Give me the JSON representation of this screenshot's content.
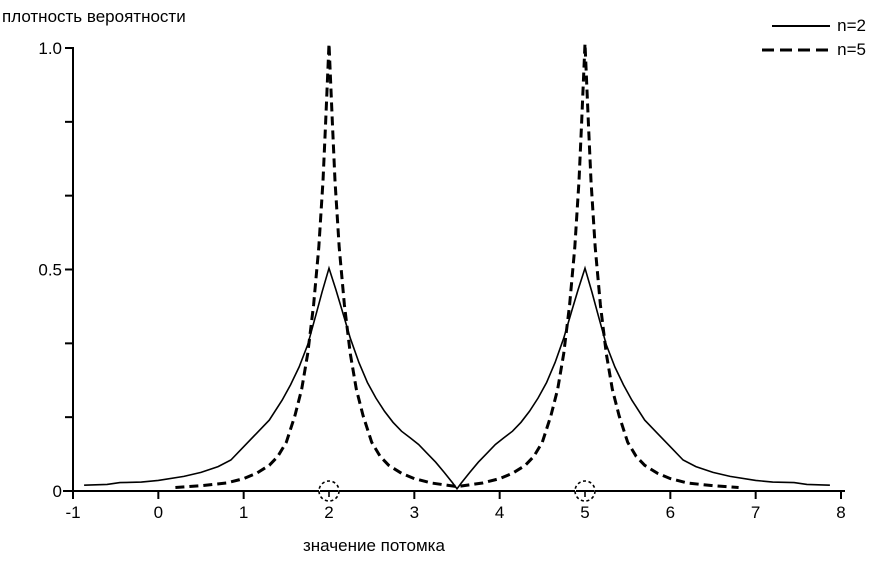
{
  "figure": {
    "background": "#ffffff",
    "foreground": "#000000"
  },
  "chart_data": {
    "type": "line",
    "title": "",
    "ylabel": "плотность вероятности",
    "xlabel": "значение потомка",
    "xlim": [
      -1,
      8
    ],
    "ylim": [
      0,
      1.0
    ],
    "grid": false,
    "legend_position": "top-right",
    "xticks": [
      {
        "v": -1,
        "label": "-1"
      },
      {
        "v": 0,
        "label": "0"
      },
      {
        "v": 1,
        "label": "1"
      },
      {
        "v": 2,
        "label": "2"
      },
      {
        "v": 3,
        "label": "3"
      },
      {
        "v": 4,
        "label": "4"
      },
      {
        "v": 5,
        "label": "5"
      },
      {
        "v": 6,
        "label": "6"
      },
      {
        "v": 7,
        "label": "7"
      },
      {
        "v": 8,
        "label": "8"
      }
    ],
    "yticks": [
      {
        "v": 0,
        "label": "0"
      },
      {
        "v": 0.1667,
        "label": ""
      },
      {
        "v": 0.3333,
        "label": ""
      },
      {
        "v": 0.5,
        "label": "0.5"
      },
      {
        "v": 0.6667,
        "label": ""
      },
      {
        "v": 0.8333,
        "label": ""
      },
      {
        "v": 1.0,
        "label": "1.0"
      }
    ],
    "axis_markers": [
      {
        "x": 2,
        "symbol": "т"
      },
      {
        "x": 5,
        "symbol": "т"
      }
    ],
    "series": [
      {
        "name": "n=2",
        "style": "solid",
        "color": "#000000",
        "peaks": [
          {
            "x": 2,
            "y": 0.5
          },
          {
            "x": 5,
            "y": 0.5
          }
        ],
        "points": [
          [
            -0.87,
            0.013
          ],
          [
            -0.6,
            0.015
          ],
          [
            -0.45,
            0.019
          ],
          [
            -0.2,
            0.02
          ],
          [
            0,
            0.024
          ],
          [
            0.3,
            0.033
          ],
          [
            0.5,
            0.042
          ],
          [
            0.7,
            0.055
          ],
          [
            0.85,
            0.07
          ],
          [
            1.0,
            0.1
          ],
          [
            1.15,
            0.13
          ],
          [
            1.3,
            0.16
          ],
          [
            1.45,
            0.205
          ],
          [
            1.55,
            0.24
          ],
          [
            1.65,
            0.28
          ],
          [
            1.75,
            0.33
          ],
          [
            1.85,
            0.4
          ],
          [
            1.92,
            0.45
          ],
          [
            2.0,
            0.503
          ],
          [
            2.08,
            0.455
          ],
          [
            2.15,
            0.41
          ],
          [
            2.25,
            0.345
          ],
          [
            2.35,
            0.29
          ],
          [
            2.45,
            0.245
          ],
          [
            2.55,
            0.21
          ],
          [
            2.65,
            0.18
          ],
          [
            2.75,
            0.155
          ],
          [
            2.85,
            0.135
          ],
          [
            2.95,
            0.12
          ],
          [
            3.05,
            0.105
          ],
          [
            3.15,
            0.085
          ],
          [
            3.25,
            0.065
          ],
          [
            3.35,
            0.042
          ],
          [
            3.45,
            0.018
          ],
          [
            3.5,
            0.005
          ],
          [
            3.55,
            0.018
          ],
          [
            3.65,
            0.042
          ],
          [
            3.75,
            0.065
          ],
          [
            3.85,
            0.085
          ],
          [
            3.95,
            0.105
          ],
          [
            4.05,
            0.12
          ],
          [
            4.15,
            0.135
          ],
          [
            4.25,
            0.155
          ],
          [
            4.35,
            0.18
          ],
          [
            4.45,
            0.21
          ],
          [
            4.55,
            0.245
          ],
          [
            4.65,
            0.29
          ],
          [
            4.75,
            0.345
          ],
          [
            4.85,
            0.41
          ],
          [
            4.92,
            0.455
          ],
          [
            5.0,
            0.503
          ],
          [
            5.08,
            0.45
          ],
          [
            5.15,
            0.4
          ],
          [
            5.25,
            0.33
          ],
          [
            5.35,
            0.28
          ],
          [
            5.45,
            0.24
          ],
          [
            5.55,
            0.205
          ],
          [
            5.7,
            0.16
          ],
          [
            5.85,
            0.13
          ],
          [
            6.0,
            0.1
          ],
          [
            6.15,
            0.07
          ],
          [
            6.3,
            0.055
          ],
          [
            6.5,
            0.042
          ],
          [
            6.7,
            0.033
          ],
          [
            7.0,
            0.024
          ],
          [
            7.2,
            0.02
          ],
          [
            7.45,
            0.019
          ],
          [
            7.6,
            0.015
          ],
          [
            7.87,
            0.013
          ]
        ]
      },
      {
        "name": "n=5",
        "style": "dashed",
        "color": "#000000",
        "peaks": [
          {
            "x": 2,
            "y": 1.0
          },
          {
            "x": 5,
            "y": 1.0
          }
        ],
        "points": [
          [
            0.2,
            0.008
          ],
          [
            0.5,
            0.012
          ],
          [
            0.8,
            0.018
          ],
          [
            1.0,
            0.028
          ],
          [
            1.15,
            0.04
          ],
          [
            1.3,
            0.058
          ],
          [
            1.4,
            0.078
          ],
          [
            1.5,
            0.11
          ],
          [
            1.6,
            0.17
          ],
          [
            1.68,
            0.23
          ],
          [
            1.75,
            0.31
          ],
          [
            1.82,
            0.42
          ],
          [
            1.88,
            0.55
          ],
          [
            1.93,
            0.7
          ],
          [
            1.96,
            0.83
          ],
          [
            2.0,
            1.01
          ],
          [
            2.04,
            0.83
          ],
          [
            2.07,
            0.7
          ],
          [
            2.12,
            0.55
          ],
          [
            2.18,
            0.42
          ],
          [
            2.25,
            0.31
          ],
          [
            2.32,
            0.23
          ],
          [
            2.4,
            0.17
          ],
          [
            2.5,
            0.11
          ],
          [
            2.6,
            0.078
          ],
          [
            2.7,
            0.058
          ],
          [
            2.85,
            0.04
          ],
          [
            3.0,
            0.028
          ],
          [
            3.2,
            0.018
          ],
          [
            3.5,
            0.01
          ],
          [
            3.8,
            0.018
          ],
          [
            4.0,
            0.028
          ],
          [
            4.15,
            0.04
          ],
          [
            4.3,
            0.058
          ],
          [
            4.4,
            0.078
          ],
          [
            4.5,
            0.11
          ],
          [
            4.6,
            0.17
          ],
          [
            4.68,
            0.23
          ],
          [
            4.75,
            0.31
          ],
          [
            4.82,
            0.42
          ],
          [
            4.88,
            0.55
          ],
          [
            4.93,
            0.7
          ],
          [
            4.96,
            0.83
          ],
          [
            5.0,
            1.01
          ],
          [
            5.04,
            0.83
          ],
          [
            5.07,
            0.7
          ],
          [
            5.12,
            0.55
          ],
          [
            5.18,
            0.42
          ],
          [
            5.25,
            0.31
          ],
          [
            5.32,
            0.23
          ],
          [
            5.4,
            0.17
          ],
          [
            5.5,
            0.11
          ],
          [
            5.6,
            0.078
          ],
          [
            5.7,
            0.058
          ],
          [
            5.85,
            0.04
          ],
          [
            6.0,
            0.028
          ],
          [
            6.2,
            0.018
          ],
          [
            6.5,
            0.012
          ],
          [
            6.8,
            0.008
          ]
        ]
      }
    ]
  }
}
